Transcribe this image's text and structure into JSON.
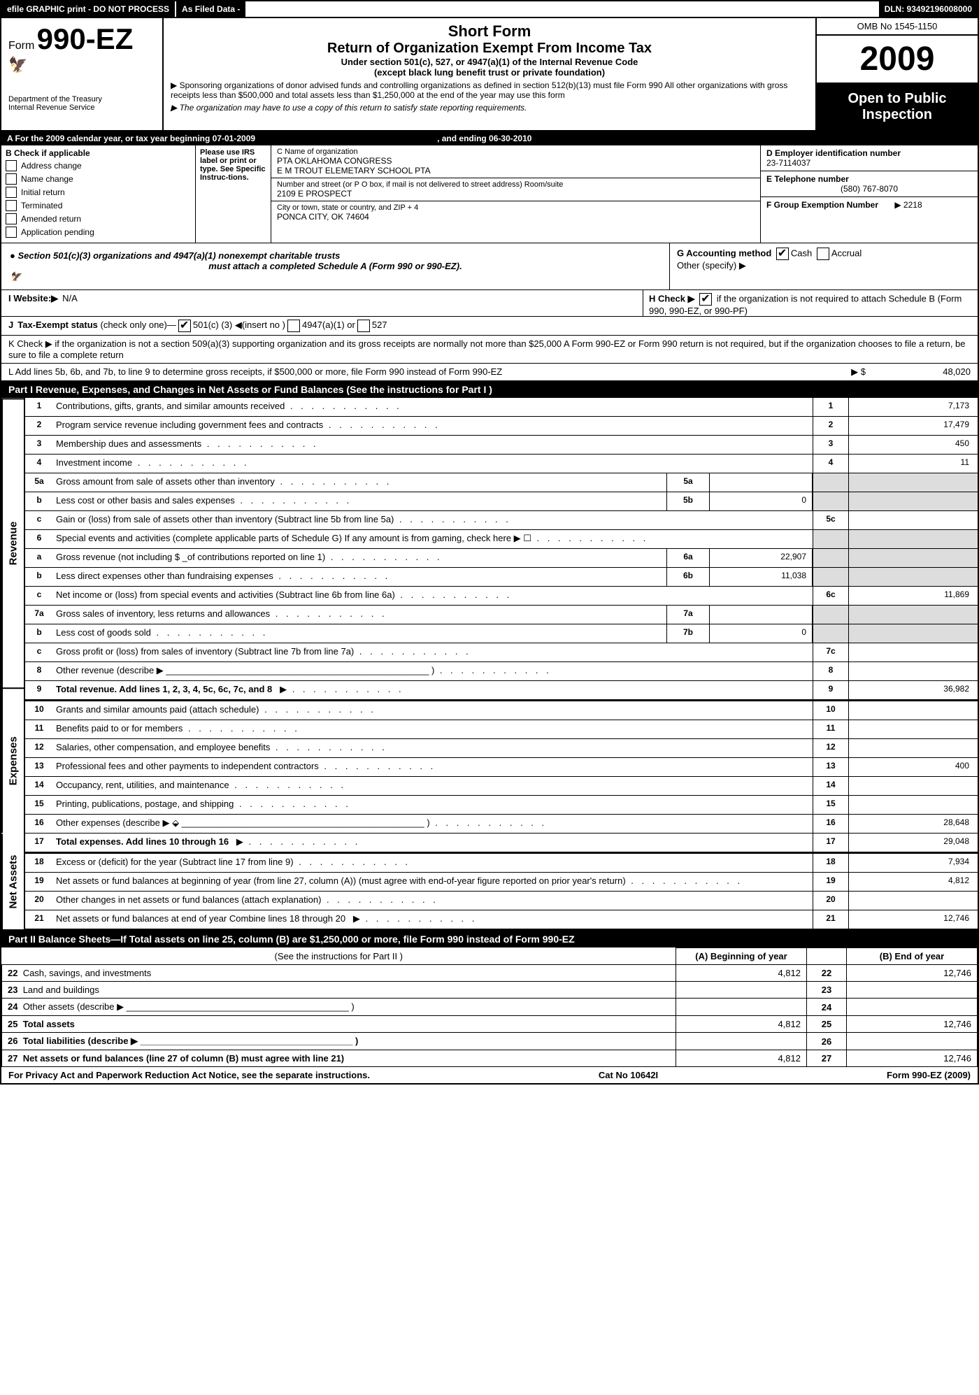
{
  "topbar": {
    "efile": "efile GRAPHIC print - DO NOT PROCESS",
    "asfiled": "As Filed Data -",
    "dln": "DLN: 93492196008000"
  },
  "header": {
    "form_prefix": "Form",
    "form_no": "990-EZ",
    "dept1": "Department of the Treasury",
    "dept2": "Internal Revenue Service",
    "short": "Short Form",
    "title": "Return of Organization Exempt From Income Tax",
    "sub1": "Under section 501(c), 527, or 4947(a)(1) of the Internal Revenue Code",
    "sub2": "(except black lung benefit trust or private foundation)",
    "note1": "▶ Sponsoring organizations of donor advised funds and controlling organizations as defined in section 512(b)(13) must file Form 990  All other organizations with gross receipts less than $500,000 and total assets less than $1,250,000 at the end of the year may use this form",
    "note2": "▶ The organization may have to use a copy of this return to satisfy state reporting requirements.",
    "omb": "OMB No  1545-1150",
    "year": "2009",
    "open1": "Open to Public",
    "open2": "Inspection"
  },
  "rowA": {
    "text": "A  For the 2009 calendar year, or tax year beginning 07-01-2009",
    "ending": ", and ending 06-30-2010"
  },
  "colB": {
    "head": "B  Check if applicable",
    "items": [
      "Address change",
      "Name change",
      "Initial return",
      "Terminated",
      "Amended return",
      "Application pending"
    ],
    "please": "Please use IRS label or print or type. See Specific Instruc-tions."
  },
  "colC": {
    "c_label": "C Name of organization",
    "name1": "PTA OKLAHOMA CONGRESS",
    "name2": "E M TROUT ELEMETARY SCHOOL PTA",
    "street_label": "Number and street (or P O box, if mail is not delivered to street address) Room/suite",
    "street": "2109 E PROSPECT",
    "city_label": "City or town, state or country, and ZIP + 4",
    "city": "PONCA CITY, OK  74604"
  },
  "colD": {
    "d_label": "D Employer identification number",
    "ein": "23-7114037",
    "e_label": "E Telephone number",
    "phone": "(580) 767-8070",
    "f_label": "F Group Exemption Number",
    "f_val": "▶ 2218"
  },
  "sec501": {
    "line1": "● Section 501(c)(3) organizations and 4947(a)(1) nonexempt charitable trusts",
    "line2": "must attach a completed Schedule A (Form 990 or 990-EZ).",
    "g": "G Accounting method",
    "cash": "Cash",
    "accr": "Accrual",
    "other": "Other (specify) ▶"
  },
  "rowI": {
    "label": "I Website:▶",
    "val": "N/A",
    "h": "H  Check ▶",
    "h2": "if the organization is not required to attach Schedule B (Form 990, 990-EZ, or 990-PF)"
  },
  "rowJ": "J Tax-Exempt status (check only one)—    501(c) (3) ◀(insert no )     4947(a)(1) or      527",
  "rowK": "K Check ▶     if the organization is not a section 509(a)(3) supporting organization and its gross receipts are normally not more than $25,000  A Form 990-EZ or Form 990 return is not required, but if the organization chooses to file a return, be sure to file a complete return",
  "rowL": {
    "text": "L Add lines 5b, 6b, and 7b, to line 9 to determine gross receipts, if $500,000 or more, file Form 990 instead of Form 990-EZ",
    "arrow": "▶ $",
    "val": "48,020"
  },
  "part1": {
    "title": "Part I    Revenue, Expenses, and Changes in Net Assets or Fund Balances (See the instructions for Part I )",
    "cat_rev": "Revenue",
    "cat_exp": "Expenses",
    "cat_na": "Net Assets",
    "lines": [
      {
        "n": "1",
        "d": "Contributions, gifts, grants, and similar amounts received",
        "rn": "1",
        "rv": "7,173"
      },
      {
        "n": "2",
        "d": "Program service revenue including government fees and contracts",
        "rn": "2",
        "rv": "17,479"
      },
      {
        "n": "3",
        "d": "Membership dues and assessments",
        "rn": "3",
        "rv": "450"
      },
      {
        "n": "4",
        "d": "Investment income",
        "rn": "4",
        "rv": "11"
      },
      {
        "n": "5a",
        "d": "Gross amount from sale of assets other than inventory",
        "mc": "5a",
        "mv": ""
      },
      {
        "n": "b",
        "d": "Less  cost or other basis and sales expenses",
        "mc": "5b",
        "mv": "0"
      },
      {
        "n": "c",
        "d": "Gain or (loss) from sale of assets other than inventory (Subtract line 5b from line 5a)",
        "rn": "5c",
        "rv": ""
      },
      {
        "n": "6",
        "d": "Special events and activities (complete applicable parts of Schedule G)  If any amount is from gaming, check here ▶   ☐"
      },
      {
        "n": "a",
        "d": "Gross revenue (not including $ _of contributions reported on line 1)",
        "mc": "6a",
        "mv": "22,907"
      },
      {
        "n": "b",
        "d": "Less  direct expenses other than fundraising expenses",
        "mc": "6b",
        "mv": "11,038"
      },
      {
        "n": "c",
        "d": "Net income or (loss) from special events and activities (Subtract line 6b from line 6a)",
        "rn": "6c",
        "rv": "11,869"
      },
      {
        "n": "7a",
        "d": "Gross sales of inventory, less returns and allowances",
        "mc": "7a",
        "mv": ""
      },
      {
        "n": "b",
        "d": "Less  cost of goods sold",
        "mc": "7b",
        "mv": "0"
      },
      {
        "n": "c",
        "d": "Gross profit or (loss) from sales of inventory (Subtract line 7b from line 7a)",
        "rn": "7c",
        "rv": ""
      },
      {
        "n": "8",
        "d": "Other revenue (describe ▶ ____________________________________________________ )",
        "rn": "8",
        "rv": ""
      },
      {
        "n": "9",
        "d": "Total revenue. Add lines 1, 2, 3, 4, 5c, 6c, 7c, and 8",
        "rn": "9",
        "rv": "36,982",
        "bold": true,
        "arrow": true
      }
    ],
    "exp": [
      {
        "n": "10",
        "d": "Grants and similar amounts paid (attach schedule)",
        "rn": "10",
        "rv": ""
      },
      {
        "n": "11",
        "d": "Benefits paid to or for members",
        "rn": "11",
        "rv": ""
      },
      {
        "n": "12",
        "d": "Salaries, other compensation, and employee benefits",
        "rn": "12",
        "rv": ""
      },
      {
        "n": "13",
        "d": "Professional fees and other payments to independent contractors",
        "rn": "13",
        "rv": "400"
      },
      {
        "n": "14",
        "d": "Occupancy, rent, utilities, and maintenance",
        "rn": "14",
        "rv": ""
      },
      {
        "n": "15",
        "d": "Printing, publications, postage, and shipping",
        "rn": "15",
        "rv": ""
      },
      {
        "n": "16",
        "d": "Other expenses (describe ▶ ⬙ ________________________________________________ )",
        "rn": "16",
        "rv": "28,648"
      },
      {
        "n": "17",
        "d": "Total expenses. Add lines 10 through 16",
        "rn": "17",
        "rv": "29,048",
        "bold": true,
        "arrow": true
      }
    ],
    "na": [
      {
        "n": "18",
        "d": "Excess or (deficit) for the year (Subtract line 17 from line 9)",
        "rn": "18",
        "rv": "7,934"
      },
      {
        "n": "19",
        "d": "Net assets or fund balances at beginning of year (from line 27, column (A)) (must agree with end-of-year figure reported on prior year's return)",
        "rn": "19",
        "rv": "4,812"
      },
      {
        "n": "20",
        "d": "Other changes in net assets or fund balances (attach explanation)",
        "rn": "20",
        "rv": ""
      },
      {
        "n": "21",
        "d": "Net assets or fund balances at end of year  Combine lines 18 through 20",
        "rn": "21",
        "rv": "12,746",
        "arrow": true
      }
    ]
  },
  "part2": {
    "title": "Part II   Balance Sheets—If Total assets on line 25, column (B) are $1,250,000 or more, file Form 990 instead of Form 990-EZ",
    "instr": "(See the instructions for Part II )",
    "colA": "(A) Beginning of year",
    "colB": "(B) End of year",
    "rows": [
      {
        "n": "22",
        "d": "Cash, savings, and investments",
        "a": "4,812",
        "b": "12,746"
      },
      {
        "n": "23",
        "d": "Land and buildings",
        "a": "",
        "b": ""
      },
      {
        "n": "24",
        "d": "Other assets (describe ▶ ____________________________________________ )",
        "a": "",
        "b": ""
      },
      {
        "n": "25",
        "d": "Total assets",
        "a": "4,812",
        "b": "12,746",
        "bold": true
      },
      {
        "n": "26",
        "d": "Total liabilities (describe ▶ __________________________________________ )",
        "a": "",
        "b": "",
        "bold": true
      },
      {
        "n": "27",
        "d": "Net assets or fund balances (line 27 of column (B) must agree with line 21)",
        "a": "4,812",
        "b": "12,746",
        "bold": true
      }
    ]
  },
  "footer": {
    "left": "For Privacy Act and Paperwork Reduction Act Notice, see the separate instructions.",
    "mid": "Cat No 10642I",
    "right": "Form 990-EZ (2009)"
  }
}
